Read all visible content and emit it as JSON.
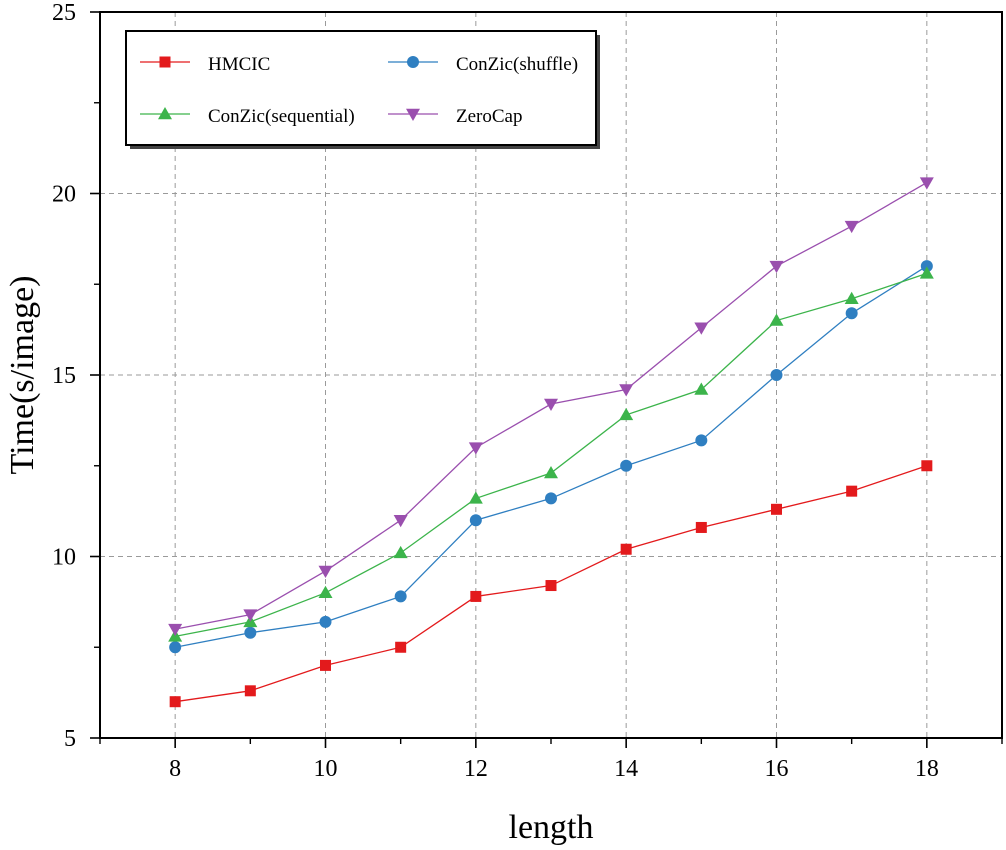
{
  "chart_data": {
    "type": "line",
    "title": "",
    "xlabel": "length",
    "ylabel": "Time(s/image)",
    "xlim": [
      7,
      19
    ],
    "ylim": [
      5,
      25
    ],
    "xticks": [
      "8",
      "10",
      "12",
      "14",
      "16",
      "18"
    ],
    "yticks": [
      "5",
      "10",
      "15",
      "20",
      "25"
    ],
    "grid": true,
    "legend_position": "top-left",
    "x": [
      8,
      9,
      10,
      11,
      12,
      13,
      14,
      15,
      16,
      17,
      18
    ],
    "series": [
      {
        "name": "HMCIC",
        "color": "#e31a1c",
        "marker": "square",
        "values": [
          6.0,
          6.3,
          7.0,
          7.5,
          8.9,
          9.2,
          10.2,
          10.8,
          11.3,
          11.8,
          12.5
        ]
      },
      {
        "name": "ConZic(shuffle)",
        "color": "#2f7fc1",
        "marker": "circle",
        "values": [
          7.5,
          7.9,
          8.2,
          8.9,
          11.0,
          11.6,
          12.5,
          13.2,
          15.0,
          16.7,
          18.0
        ]
      },
      {
        "name": "ConZic(sequential)",
        "color": "#3cb44b",
        "marker": "triangle-up",
        "values": [
          7.8,
          8.2,
          9.0,
          10.1,
          11.6,
          12.3,
          13.9,
          14.6,
          16.5,
          17.1,
          17.8
        ]
      },
      {
        "name": "ZeroCap",
        "color": "#9a4fae",
        "marker": "triangle-down",
        "values": [
          8.0,
          8.4,
          9.6,
          11.0,
          13.0,
          14.2,
          14.6,
          16.3,
          18.0,
          19.1,
          20.3
        ]
      }
    ]
  }
}
